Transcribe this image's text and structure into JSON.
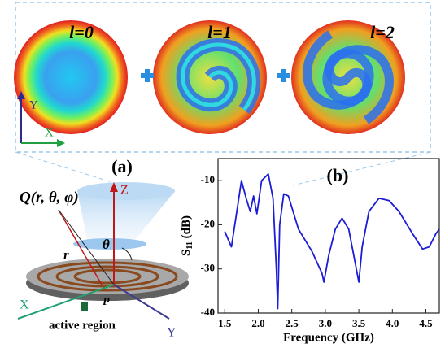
{
  "top_panel": {
    "modes": [
      "l=0",
      "l=1",
      "l=2"
    ],
    "axis_y": "Y",
    "axis_x": "X"
  },
  "panel_a": {
    "label": "(a)",
    "point_q": "Q(r, θ, φ)",
    "axis_z": "Z",
    "angle": "θ",
    "radius": "r",
    "axis_x": "X",
    "axis_y": "Y",
    "point_p": "P",
    "annotation": "active region"
  },
  "chart_data": {
    "type": "line",
    "panel_label": "(b)",
    "xlabel": "Frequency (GHz)",
    "ylabel_main": "S",
    "ylabel_sub": "11",
    "ylabel_unit": " (dB)",
    "color": "#1c1cd8",
    "x": [
      1.5,
      1.6,
      1.68,
      1.75,
      1.82,
      1.88,
      1.93,
      1.98,
      2.05,
      2.15,
      2.22,
      2.27,
      2.29,
      2.32,
      2.38,
      2.45,
      2.6,
      2.8,
      2.95,
      2.98,
      3.05,
      3.15,
      3.25,
      3.35,
      3.45,
      3.5,
      3.55,
      3.65,
      3.8,
      3.95,
      4.1,
      4.3,
      4.45,
      4.55,
      4.65,
      4.7
    ],
    "values": [
      -21.5,
      -25,
      -17,
      -10,
      -14,
      -17,
      -13.5,
      -17.5,
      -10,
      -8.5,
      -14,
      -30,
      -39,
      -20,
      -13,
      -13.5,
      -21,
      -26,
      -31,
      -33,
      -27,
      -21,
      -18.5,
      -21,
      -29,
      -33,
      -25,
      -17,
      -14,
      -14.5,
      -17,
      -22,
      -25.5,
      -25,
      -22,
      -21
    ],
    "xlim": [
      1.4,
      4.7
    ],
    "ylim": [
      -40,
      -5
    ],
    "xticks": [
      1.5,
      {
        "value": 2,
        "label": "2.0"
      },
      2.5,
      {
        "value": 3,
        "label": "3.0"
      },
      3.5,
      {
        "value": 4,
        "label": "4.0"
      },
      4.5
    ],
    "yticks": [
      -40,
      -30,
      -20,
      -10
    ]
  }
}
